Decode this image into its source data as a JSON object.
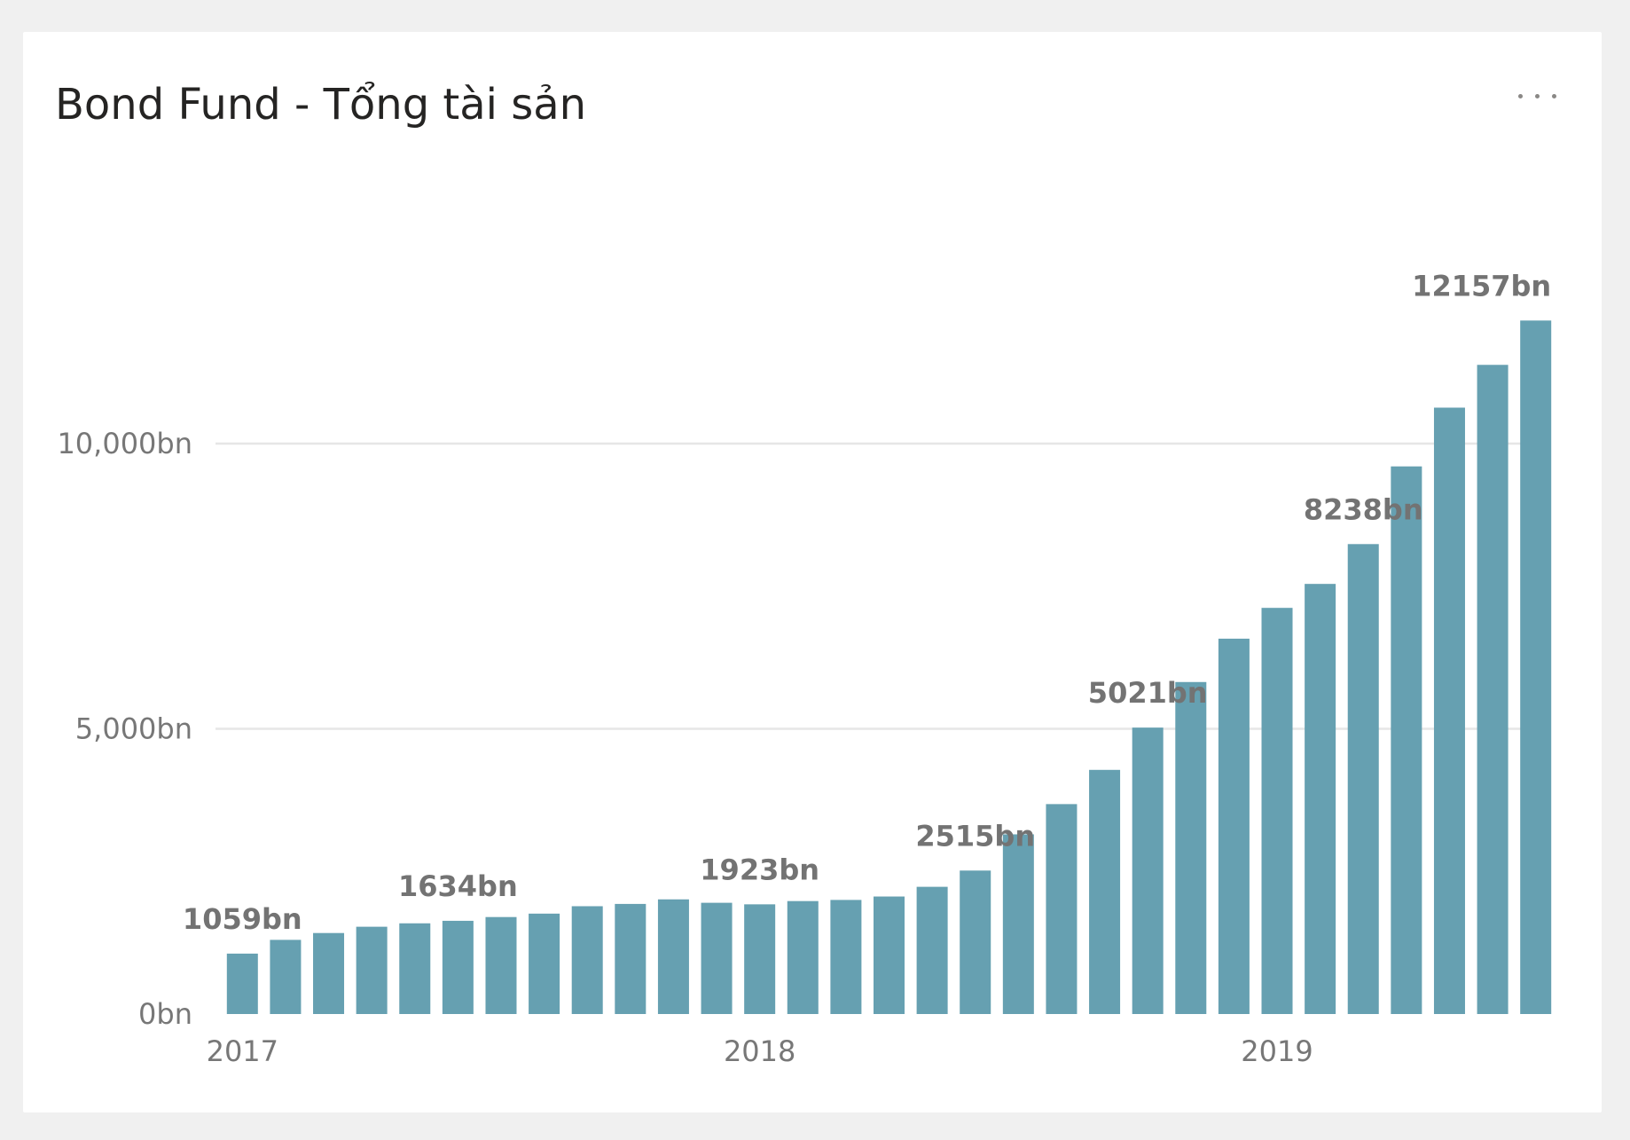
{
  "visual": {
    "title": "Bond Fund - Tổng tài sản",
    "menu_icon": "more-options-icon"
  },
  "colors": {
    "bar": "#66a0b1",
    "gridline": "#e6e6e6",
    "axis_text": "#777777",
    "label_text": "#737373",
    "card_bg": "#ffffff",
    "page_bg": "#f0f0f0"
  },
  "chart_data": {
    "type": "bar",
    "title": "Bond Fund - Tổng tài sản",
    "xlabel": "",
    "ylabel": "",
    "ylim": [
      0,
      12157
    ],
    "grid": true,
    "y_ticks": [
      {
        "value": 0,
        "label": "0bn"
      },
      {
        "value": 5000,
        "label": "5,000bn"
      },
      {
        "value": 10000,
        "label": "10,000bn"
      }
    ],
    "x_ticks": [
      {
        "index": 0,
        "label": "2017"
      },
      {
        "index": 12,
        "label": "2018"
      },
      {
        "index": 24,
        "label": "2019"
      }
    ],
    "values": [
      1059,
      1300,
      1420,
      1530,
      1590,
      1634,
      1700,
      1760,
      1890,
      1930,
      2010,
      1950,
      1923,
      1980,
      2000,
      2060,
      2230,
      2515,
      3150,
      3680,
      4280,
      5021,
      5820,
      6580,
      7120,
      7540,
      8238,
      9600,
      10630,
      11380,
      12157
    ],
    "data_labels": [
      {
        "index": 0,
        "text": "1059bn"
      },
      {
        "index": 5,
        "text": "1634bn"
      },
      {
        "index": 12,
        "text": "1923bn"
      },
      {
        "index": 17,
        "text": "2515bn"
      },
      {
        "index": 21,
        "text": "5021bn"
      },
      {
        "index": 26,
        "text": "8238bn"
      },
      {
        "index": 30,
        "text": "12157bn"
      }
    ]
  }
}
